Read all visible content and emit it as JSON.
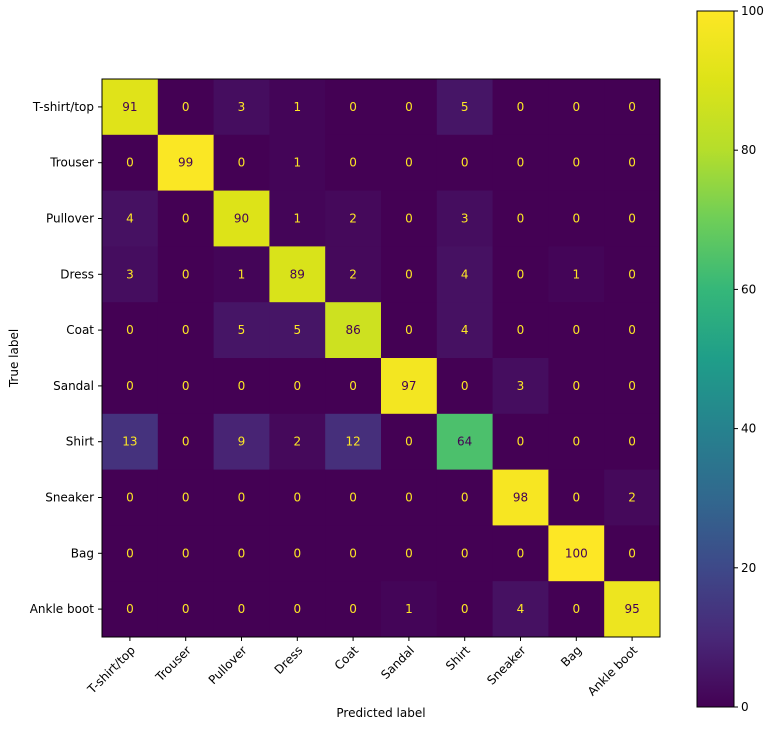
{
  "chart_data": {
    "type": "heatmap",
    "title": "",
    "xlabel": "Predicted label",
    "ylabel": "True label",
    "x_categories": [
      "T-shirt/top",
      "Trouser",
      "Pullover",
      "Dress",
      "Coat",
      "Sandal",
      "Shirt",
      "Sneaker",
      "Bag",
      "Ankle boot"
    ],
    "y_categories": [
      "T-shirt/top",
      "Trouser",
      "Pullover",
      "Dress",
      "Coat",
      "Sandal",
      "Shirt",
      "Sneaker",
      "Bag",
      "Ankle boot"
    ],
    "values": [
      [
        91,
        0,
        3,
        1,
        0,
        0,
        5,
        0,
        0,
        0
      ],
      [
        0,
        99,
        0,
        1,
        0,
        0,
        0,
        0,
        0,
        0
      ],
      [
        4,
        0,
        90,
        1,
        2,
        0,
        3,
        0,
        0,
        0
      ],
      [
        3,
        0,
        1,
        89,
        2,
        0,
        4,
        0,
        1,
        0
      ],
      [
        0,
        0,
        5,
        5,
        86,
        0,
        4,
        0,
        0,
        0
      ],
      [
        0,
        0,
        0,
        0,
        0,
        97,
        0,
        3,
        0,
        0
      ],
      [
        13,
        0,
        9,
        2,
        12,
        0,
        64,
        0,
        0,
        0
      ],
      [
        0,
        0,
        0,
        0,
        0,
        0,
        0,
        98,
        0,
        2
      ],
      [
        0,
        0,
        0,
        0,
        0,
        0,
        0,
        0,
        100,
        0
      ],
      [
        0,
        0,
        0,
        0,
        0,
        1,
        0,
        4,
        0,
        95
      ]
    ],
    "colormap": "viridis",
    "vmin": 0,
    "vmax": 100,
    "colorbar_ticks": [
      0,
      20,
      40,
      60,
      80,
      100
    ],
    "grid": false,
    "text_colors": {
      "light": "#fde725",
      "dark": "#440154"
    }
  }
}
